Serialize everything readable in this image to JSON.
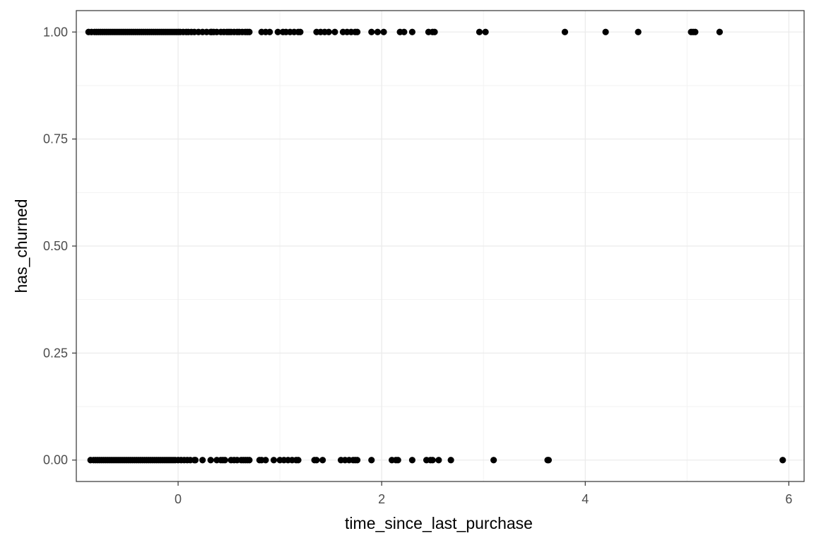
{
  "chart_data": {
    "type": "scatter",
    "title": "",
    "xlabel": "time_since_last_purchase",
    "ylabel": "has_churned",
    "xlim": [
      -1.0,
      6.15
    ],
    "ylim": [
      -0.05,
      1.05
    ],
    "x_ticks": [
      0,
      2,
      4,
      6
    ],
    "x_tick_labels": [
      "0",
      "2",
      "4",
      "6"
    ],
    "y_ticks": [
      0,
      0.25,
      0.5,
      0.75,
      1
    ],
    "y_tick_labels": [
      "0.00",
      "0.25",
      "0.50",
      "0.75",
      "1.00"
    ],
    "grid": true,
    "theme": "black-and-white",
    "point_color": "#000000",
    "series": [
      {
        "y": 1,
        "x": [
          -0.88,
          -0.85,
          -0.82,
          -0.8,
          -0.78,
          -0.76,
          -0.74,
          -0.72,
          -0.7,
          -0.68,
          -0.66,
          -0.64,
          -0.62,
          -0.6,
          -0.58,
          -0.56,
          -0.54,
          -0.52,
          -0.5,
          -0.48,
          -0.46,
          -0.44,
          -0.42,
          -0.4,
          -0.38,
          -0.36,
          -0.34,
          -0.32,
          -0.3,
          -0.28,
          -0.26,
          -0.24,
          -0.22,
          -0.2,
          -0.18,
          -0.16,
          -0.14,
          -0.12,
          -0.1,
          -0.08,
          -0.06,
          -0.04,
          -0.02,
          0.0,
          0.02,
          0.05,
          0.08,
          0.1,
          0.13,
          0.16,
          0.2,
          0.24,
          0.28,
          0.32,
          0.33,
          0.35,
          0.38,
          0.42,
          0.45,
          0.48,
          0.5,
          0.52,
          0.55,
          0.58,
          0.6,
          0.63,
          0.66,
          0.68,
          0.7,
          0.82,
          0.86,
          0.9,
          0.98,
          1.03,
          1.06,
          1.1,
          1.14,
          1.18,
          1.2,
          1.36,
          1.4,
          1.44,
          1.48,
          1.54,
          1.62,
          1.66,
          1.7,
          1.74,
          1.76,
          1.9,
          1.96,
          2.02,
          2.18,
          2.22,
          2.3,
          2.46,
          2.5,
          2.52,
          2.96,
          3.02,
          3.8,
          4.2,
          4.52,
          5.04,
          5.06,
          5.08,
          5.32
        ]
      },
      {
        "y": 0,
        "x": [
          -0.86,
          -0.83,
          -0.81,
          -0.79,
          -0.77,
          -0.75,
          -0.73,
          -0.71,
          -0.69,
          -0.67,
          -0.65,
          -0.63,
          -0.61,
          -0.59,
          -0.57,
          -0.55,
          -0.53,
          -0.51,
          -0.49,
          -0.47,
          -0.45,
          -0.43,
          -0.41,
          -0.39,
          -0.37,
          -0.35,
          -0.33,
          -0.31,
          -0.29,
          -0.27,
          -0.25,
          -0.23,
          -0.21,
          -0.19,
          -0.17,
          -0.15,
          -0.13,
          -0.11,
          -0.09,
          -0.07,
          -0.05,
          -0.03,
          0.0,
          0.03,
          0.06,
          0.09,
          0.12,
          0.16,
          0.17,
          0.24,
          0.32,
          0.38,
          0.42,
          0.44,
          0.46,
          0.52,
          0.55,
          0.58,
          0.62,
          0.64,
          0.66,
          0.68,
          0.7,
          0.8,
          0.82,
          0.86,
          0.94,
          1.0,
          1.04,
          1.08,
          1.12,
          1.16,
          1.18,
          1.34,
          1.36,
          1.42,
          1.6,
          1.64,
          1.68,
          1.72,
          1.74,
          1.76,
          1.9,
          2.1,
          2.14,
          2.16,
          2.3,
          2.44,
          2.48,
          2.5,
          2.56,
          2.68,
          3.1,
          3.63,
          3.64,
          5.94
        ]
      }
    ]
  }
}
